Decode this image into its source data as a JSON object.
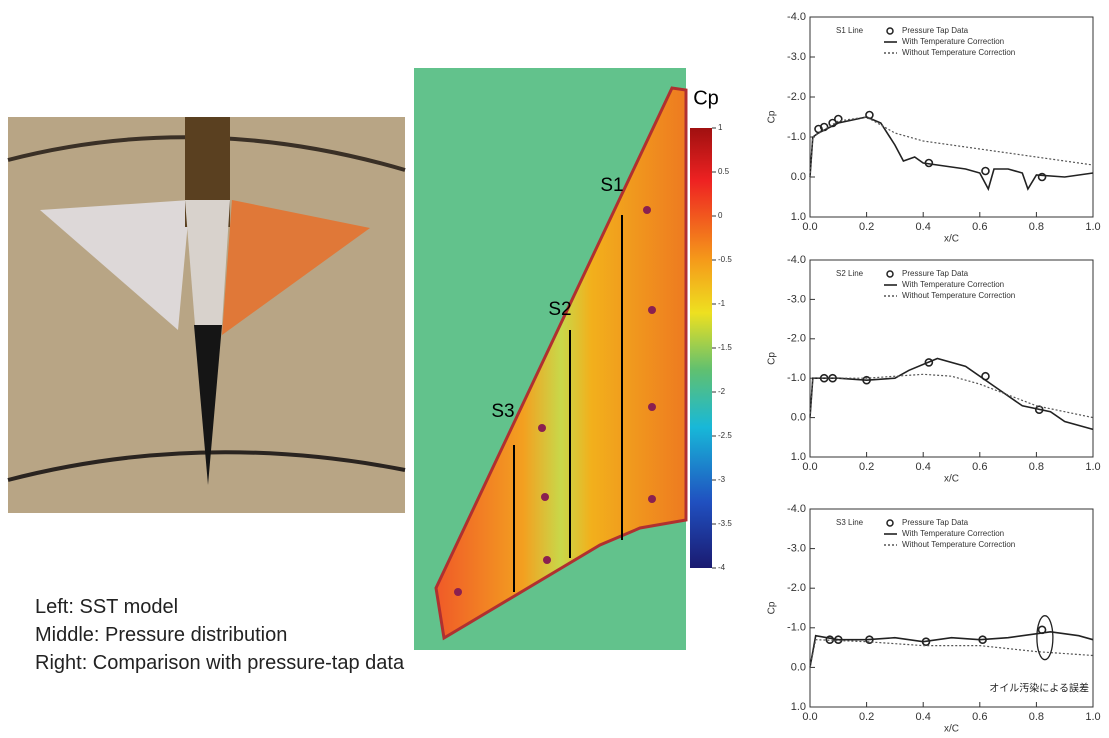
{
  "figure": {
    "map_labels": [
      "S1",
      "S2",
      "S3"
    ],
    "colorbar": {
      "title": "Cp",
      "lim": [
        1,
        -4
      ],
      "ticks": [
        1,
        0.5,
        0,
        -0.5,
        -1,
        -1.5,
        -2,
        -2.5,
        -3,
        -3.5,
        -4
      ]
    }
  },
  "caption": [
    "Left: SST model",
    "Middle: Pressure distribution",
    "Right: Comparison with pressure-tap data"
  ],
  "chart_data": [
    {
      "type": "line",
      "title": "S1 Line",
      "xlabel": "x/C",
      "ylabel": "Cp",
      "xlim": [
        0,
        1
      ],
      "ylim": [
        1,
        -4
      ],
      "xticks": [
        {
          "value": 0,
          "label": "0.0"
        },
        0.2,
        0.4,
        0.6,
        0.8,
        {
          "value": 1,
          "label": "1.0"
        }
      ],
      "yticks": [
        {
          "value": -4,
          "label": "-4.0"
        },
        {
          "value": -3,
          "label": "-3.0"
        },
        {
          "value": -2,
          "label": "-2.0"
        },
        {
          "value": -1,
          "label": "-1.0"
        },
        {
          "value": 0,
          "label": "0.0"
        },
        {
          "value": 1,
          "label": "1.0"
        }
      ],
      "series": [
        {
          "name": "Pressure Tap Data",
          "color": "#222",
          "style": "marker",
          "x": [
            0.03,
            0.05,
            0.08,
            0.1,
            0.21,
            0.42,
            0.62,
            0.82
          ],
          "values": [
            -1.2,
            -1.25,
            -1.35,
            -1.45,
            -1.55,
            -0.35,
            -0.15,
            0.0
          ]
        },
        {
          "name": "With Temperature Correction",
          "color": "#222",
          "style": "solid",
          "x": [
            0,
            0.01,
            0.03,
            0.1,
            0.2,
            0.25,
            0.3,
            0.33,
            0.37,
            0.4,
            0.45,
            0.5,
            0.55,
            0.6,
            0.63,
            0.65,
            0.7,
            0.75,
            0.77,
            0.8,
            0.9,
            1.0
          ],
          "values": [
            0,
            -1.0,
            -1.1,
            -1.35,
            -1.5,
            -1.35,
            -0.8,
            -0.4,
            -0.5,
            -0.35,
            -0.3,
            -0.25,
            -0.2,
            -0.1,
            0.3,
            -0.2,
            -0.2,
            -0.1,
            0.3,
            -0.05,
            0.0,
            -0.1
          ]
        },
        {
          "name": "Without Temperature Correction",
          "color": "#555",
          "style": "dotted",
          "x": [
            0,
            0.01,
            0.1,
            0.2,
            0.3,
            0.4,
            0.5,
            0.6,
            0.7,
            0.8,
            0.9,
            1.0
          ],
          "values": [
            0,
            -1.0,
            -1.4,
            -1.5,
            -1.1,
            -0.9,
            -0.8,
            -0.7,
            -0.6,
            -0.5,
            -0.4,
            -0.3
          ]
        }
      ]
    },
    {
      "type": "line",
      "title": "S2 Line",
      "xlabel": "x/C",
      "ylabel": "Cp",
      "xlim": [
        0,
        1
      ],
      "ylim": [
        1,
        -4
      ],
      "xticks": [
        {
          "value": 0,
          "label": "0.0"
        },
        0.2,
        0.4,
        0.6,
        0.8,
        {
          "value": 1,
          "label": "1.0"
        }
      ],
      "yticks": [
        {
          "value": -4,
          "label": "-4.0"
        },
        {
          "value": -3,
          "label": "-3.0"
        },
        {
          "value": -2,
          "label": "-2.0"
        },
        {
          "value": -1,
          "label": "-1.0"
        },
        {
          "value": 0,
          "label": "0.0"
        },
        {
          "value": 1,
          "label": "1.0"
        }
      ],
      "series": [
        {
          "name": "Pressure Tap Data",
          "color": "#222",
          "style": "marker",
          "x": [
            0.05,
            0.08,
            0.2,
            0.42,
            0.62,
            0.81
          ],
          "values": [
            -1.0,
            -1.0,
            -0.95,
            -1.4,
            -1.05,
            -0.2
          ]
        },
        {
          "name": "With Temperature Correction",
          "color": "#222",
          "style": "solid",
          "x": [
            0,
            0.01,
            0.1,
            0.2,
            0.3,
            0.35,
            0.45,
            0.55,
            0.65,
            0.75,
            0.85,
            0.9,
            1.0
          ],
          "values": [
            0,
            -1.0,
            -1.0,
            -0.95,
            -1.0,
            -1.2,
            -1.5,
            -1.3,
            -0.8,
            -0.3,
            -0.15,
            0.1,
            0.3
          ]
        },
        {
          "name": "Without Temperature Correction",
          "color": "#555",
          "style": "dotted",
          "x": [
            0,
            0.01,
            0.2,
            0.4,
            0.5,
            0.6,
            0.8,
            1.0
          ],
          "values": [
            0,
            -1.0,
            -1.0,
            -1.1,
            -1.05,
            -0.85,
            -0.3,
            0.0
          ]
        }
      ]
    },
    {
      "type": "line",
      "title": "S3 Line",
      "xlabel": "x/C",
      "ylabel": "Cp",
      "annotation": "オイル汚染による誤差",
      "xlim": [
        0,
        1
      ],
      "ylim": [
        1,
        -4
      ],
      "xticks": [
        {
          "value": 0,
          "label": "0.0"
        },
        0.2,
        0.4,
        0.6,
        0.8,
        {
          "value": 1,
          "label": "1.0"
        }
      ],
      "yticks": [
        {
          "value": -4,
          "label": "-4.0"
        },
        {
          "value": -3,
          "label": "-3.0"
        },
        {
          "value": -2,
          "label": "-2.0"
        },
        {
          "value": -1,
          "label": "-1.0"
        },
        {
          "value": 0,
          "label": "0.0"
        },
        {
          "value": 1,
          "label": "1.0"
        }
      ],
      "series": [
        {
          "name": "Pressure Tap Data",
          "color": "#222",
          "style": "marker",
          "x": [
            0.07,
            0.1,
            0.21,
            0.41,
            0.61,
            0.82
          ],
          "values": [
            -0.7,
            -0.7,
            -0.7,
            -0.65,
            -0.7,
            -0.95
          ]
        },
        {
          "name": "With Temperature Correction",
          "color": "#222",
          "style": "solid",
          "x": [
            0,
            0.02,
            0.1,
            0.2,
            0.3,
            0.4,
            0.5,
            0.6,
            0.7,
            0.85,
            0.95,
            1.0
          ],
          "values": [
            0,
            -0.8,
            -0.7,
            -0.7,
            -0.75,
            -0.65,
            -0.75,
            -0.7,
            -0.75,
            -0.9,
            -0.8,
            -0.7
          ]
        },
        {
          "name": "Without Temperature Correction",
          "color": "#555",
          "style": "dotted",
          "x": [
            0,
            0.02,
            0.2,
            0.4,
            0.6,
            0.8,
            1.0
          ],
          "values": [
            0,
            -0.7,
            -0.65,
            -0.55,
            -0.55,
            -0.4,
            -0.3
          ]
        }
      ]
    }
  ]
}
